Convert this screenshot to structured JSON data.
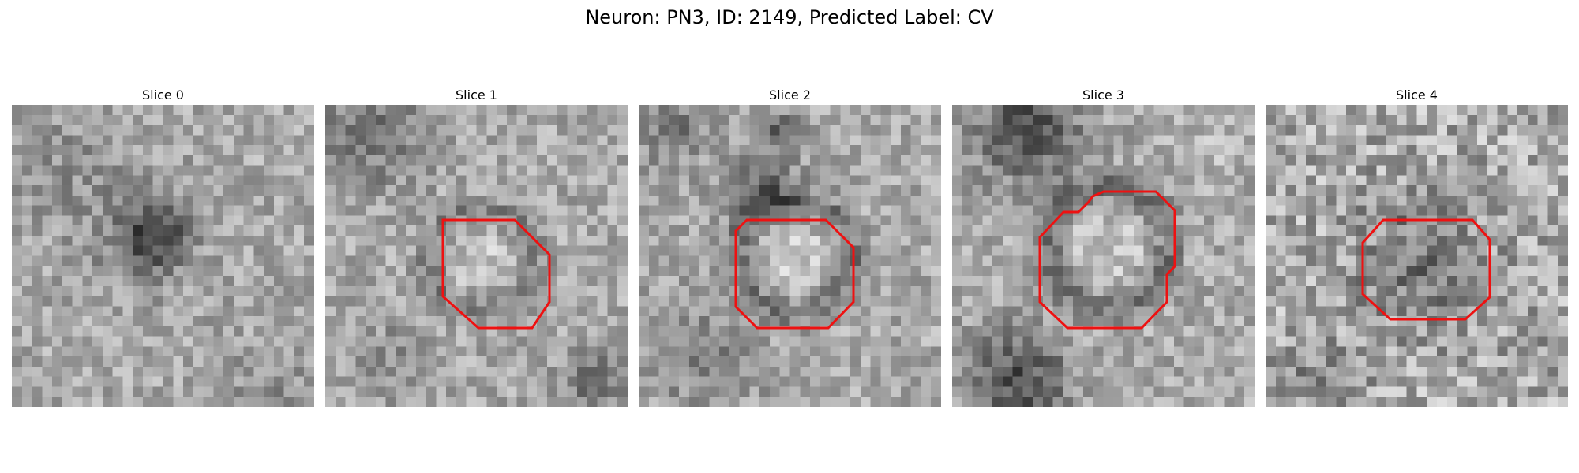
{
  "title": "Neuron: PN3, ID: 2149, Predicted Label: CV",
  "contour_color": "#ee1111",
  "slices": [
    {
      "label": "Slice 0",
      "has_contour": false
    },
    {
      "label": "Slice 1",
      "has_contour": true
    },
    {
      "label": "Slice 2",
      "has_contour": true
    },
    {
      "label": "Slice 3",
      "has_contour": true
    },
    {
      "label": "Slice 4",
      "has_contour": true
    }
  ]
}
